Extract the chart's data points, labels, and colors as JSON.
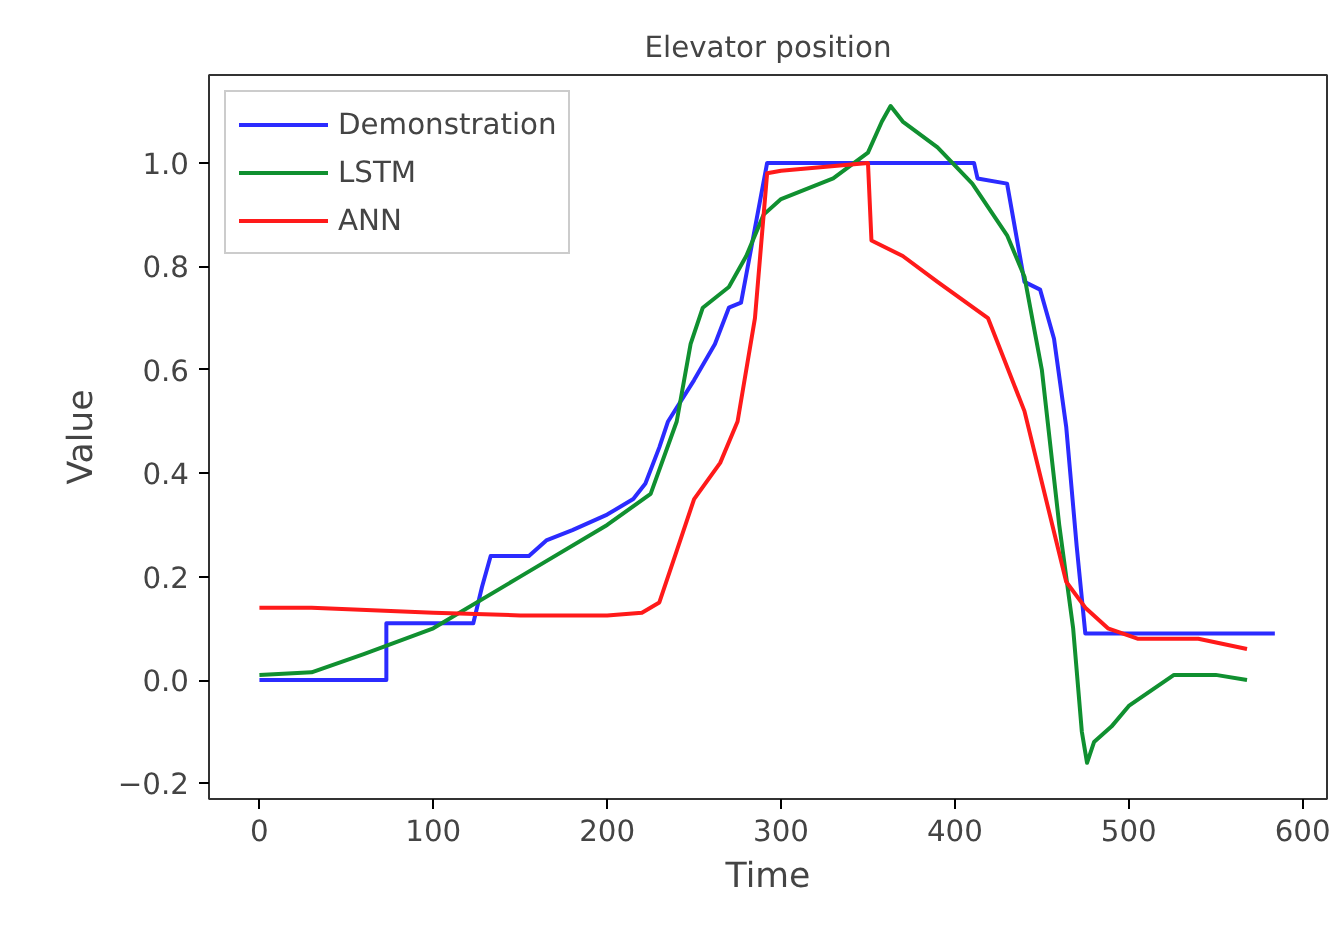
{
  "chart_data": {
    "type": "line",
    "title": "Elevator position",
    "xlabel": "Time",
    "ylabel": "Value",
    "xlim": [
      -29,
      614
    ],
    "ylim": [
      -0.23,
      1.17
    ],
    "xticks": [
      0,
      100,
      200,
      300,
      400,
      500,
      600
    ],
    "yticks": [
      {
        "value": -0.2,
        "label": "−0.2"
      },
      {
        "value": 0,
        "label": "0.0"
      },
      {
        "value": 0.2,
        "label": "0.2"
      },
      {
        "value": 0.4,
        "label": "0.4"
      },
      {
        "value": 0.6,
        "label": "0.6"
      },
      {
        "value": 0.8,
        "label": "0.8"
      },
      {
        "value": 1.0,
        "label": "1.0"
      }
    ],
    "grid": false,
    "legend": "top left",
    "series": [
      {
        "name": "Demonstration",
        "color": "#2b2bff",
        "x": [
          0,
          73,
          73,
          123,
          128,
          133,
          155,
          165,
          180,
          200,
          215,
          222,
          230,
          235,
          250,
          262,
          270,
          277,
          292,
          411,
          413,
          430,
          440,
          449,
          457,
          464,
          470,
          475,
          584
        ],
        "values": [
          0.0,
          0.0,
          0.11,
          0.11,
          0.18,
          0.24,
          0.24,
          0.27,
          0.29,
          0.32,
          0.35,
          0.38,
          0.45,
          0.5,
          0.58,
          0.65,
          0.72,
          0.73,
          1.0,
          1.0,
          0.97,
          0.96,
          0.77,
          0.755,
          0.66,
          0.49,
          0.26,
          0.09,
          0.09
        ]
      },
      {
        "name": "LSTM",
        "color": "#109030",
        "x": [
          0,
          30,
          60,
          100,
          150,
          200,
          225,
          240,
          248,
          255,
          270,
          280,
          290,
          300,
          330,
          350,
          358,
          363,
          370,
          390,
          410,
          430,
          440,
          450,
          460,
          468,
          473,
          476,
          480,
          490,
          500,
          526,
          550,
          568
        ],
        "values": [
          0.01,
          0.015,
          0.05,
          0.1,
          0.2,
          0.3,
          0.36,
          0.5,
          0.65,
          0.72,
          0.76,
          0.82,
          0.9,
          0.93,
          0.97,
          1.02,
          1.08,
          1.11,
          1.08,
          1.03,
          0.96,
          0.86,
          0.78,
          0.6,
          0.3,
          0.1,
          -0.1,
          -0.16,
          -0.12,
          -0.09,
          -0.05,
          0.01,
          0.01,
          0.0
        ]
      },
      {
        "name": "ANN",
        "color": "#ff1a1a",
        "x": [
          0,
          30,
          100,
          150,
          200,
          220,
          230,
          240,
          250,
          265,
          275,
          285,
          292,
          300,
          350,
          352,
          370,
          390,
          419,
          440,
          464,
          475,
          488,
          505,
          540,
          568
        ],
        "values": [
          0.14,
          0.14,
          0.13,
          0.125,
          0.125,
          0.13,
          0.15,
          0.25,
          0.35,
          0.42,
          0.5,
          0.7,
          0.98,
          0.985,
          1.0,
          0.85,
          0.82,
          0.77,
          0.7,
          0.52,
          0.19,
          0.14,
          0.1,
          0.08,
          0.08,
          0.06
        ]
      }
    ]
  }
}
